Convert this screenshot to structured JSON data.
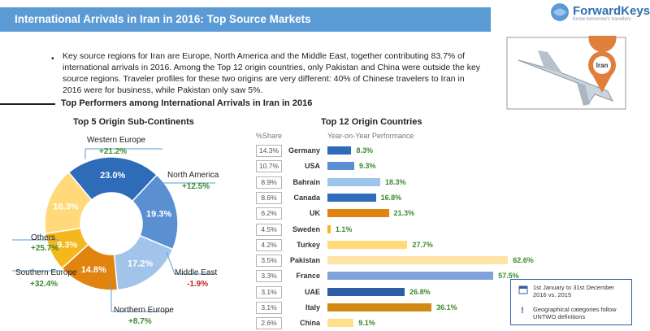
{
  "header": {
    "title": "International Arrivals in Iran in 2016: Top Source Markets"
  },
  "logo": {
    "name": "ForwardKeys",
    "tagline": "Know tomorrow's travellers"
  },
  "illustration": {
    "pin_label": "Iran"
  },
  "intro": {
    "text": "Key source regions for Iran are Europe, North America and the Middle East, together contributing 83.7% of international arrivals in 2016. Among the Top 12 origin countries, only Pakistan and China were outside the key source regions. Traveler profiles for these two origins are very different: 40% of Chinese travelers to Iran in 2016 were for business, while Pakistan only saw 5%."
  },
  "section": {
    "title": "Top Performers among International Arrivals in Iran in 2016"
  },
  "colors": {
    "header": "#5b9bd5",
    "positive": "#3c8a2e",
    "negative": "#c0262b"
  },
  "chart_data": [
    {
      "type": "pie",
      "title": "Top 5 Origin Sub-Continents",
      "categories": [
        "Western Europe",
        "North America",
        "Middle East",
        "Northern Europe",
        "Southern Europe",
        "Others"
      ],
      "values": [
        23.0,
        19.3,
        17.2,
        14.8,
        9.3,
        16.3
      ],
      "value_labels": [
        "23.0%",
        "19.3%",
        "17.2%",
        "14.8%",
        "9.3%",
        "16.3%"
      ],
      "yoy": [
        "+21.2%",
        "+12.5%",
        "-1.9%",
        "+8.7%",
        "+32.4%",
        "+25.7%"
      ],
      "colors": [
        "#2e6bb8",
        "#5a8fd2",
        "#a3c4ea",
        "#e0830f",
        "#f5b81c",
        "#ffd97a"
      ]
    },
    {
      "type": "bar",
      "title": "Top 12 Origin Countries",
      "share_header": "%Share",
      "growth_header": "Year-on-Year Performance",
      "categories": [
        "Germany",
        "USA",
        "Bahrain",
        "Canada",
        "UK",
        "Sweden",
        "Turkey",
        "Pakistan",
        "France",
        "UAE",
        "Italy",
        "China"
      ],
      "share": [
        "14.3%",
        "10.7%",
        "8.9%",
        "8.6%",
        "6.2%",
        "4.5%",
        "4.2%",
        "3.5%",
        "3.3%",
        "3.1%",
        "3.1%",
        "2.6%"
      ],
      "values": [
        8.3,
        9.3,
        18.3,
        16.8,
        21.3,
        1.1,
        27.7,
        62.6,
        57.5,
        26.8,
        36.1,
        9.1
      ],
      "value_labels": [
        "8.3%",
        "9.3%",
        "18.3%",
        "16.8%",
        "21.3%",
        "1.1%",
        "27.7%",
        "62.6%",
        "57.5%",
        "26.8%",
        "36.1%",
        "9.1%"
      ],
      "colors": [
        "#2e6bb8",
        "#5a8fd2",
        "#9ec5ec",
        "#2e6bb8",
        "#e0830f",
        "#f5b81c",
        "#ffd97a",
        "#ffe4a8",
        "#7fa2dc",
        "#2e5fa6",
        "#d08a13",
        "#ffe08a"
      ],
      "xlim": [
        0,
        70
      ]
    }
  ],
  "notes": {
    "period": "1st January to 31st December 2016 vs. 2015",
    "definitions": "Geographical categories follow UNTWO definitions"
  }
}
